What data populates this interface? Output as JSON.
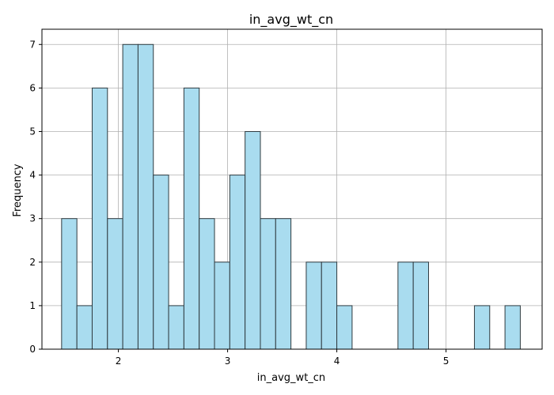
{
  "chart_data": {
    "type": "bar",
    "title": "in_avg_wt_cn",
    "xlabel": "in_avg_wt_cn",
    "ylabel": "Frequency",
    "xlim": [
      1.3,
      5.88
    ],
    "ylim": [
      0,
      7.35
    ],
    "xticks": [
      2,
      3,
      4,
      5
    ],
    "yticks": [
      0,
      1,
      2,
      3,
      4,
      5,
      6,
      7
    ],
    "grid": true,
    "bar_color": "#a9dcef",
    "edge_color": "#2f3b40",
    "bins": {
      "start": 1.48,
      "width": 0.14,
      "counts": [
        3,
        1,
        6,
        3,
        7,
        7,
        4,
        1,
        6,
        3,
        2,
        4,
        5,
        3,
        3,
        0,
        2,
        2,
        1,
        0,
        0,
        0,
        2,
        2,
        0,
        0,
        0,
        1,
        0,
        1
      ]
    }
  }
}
